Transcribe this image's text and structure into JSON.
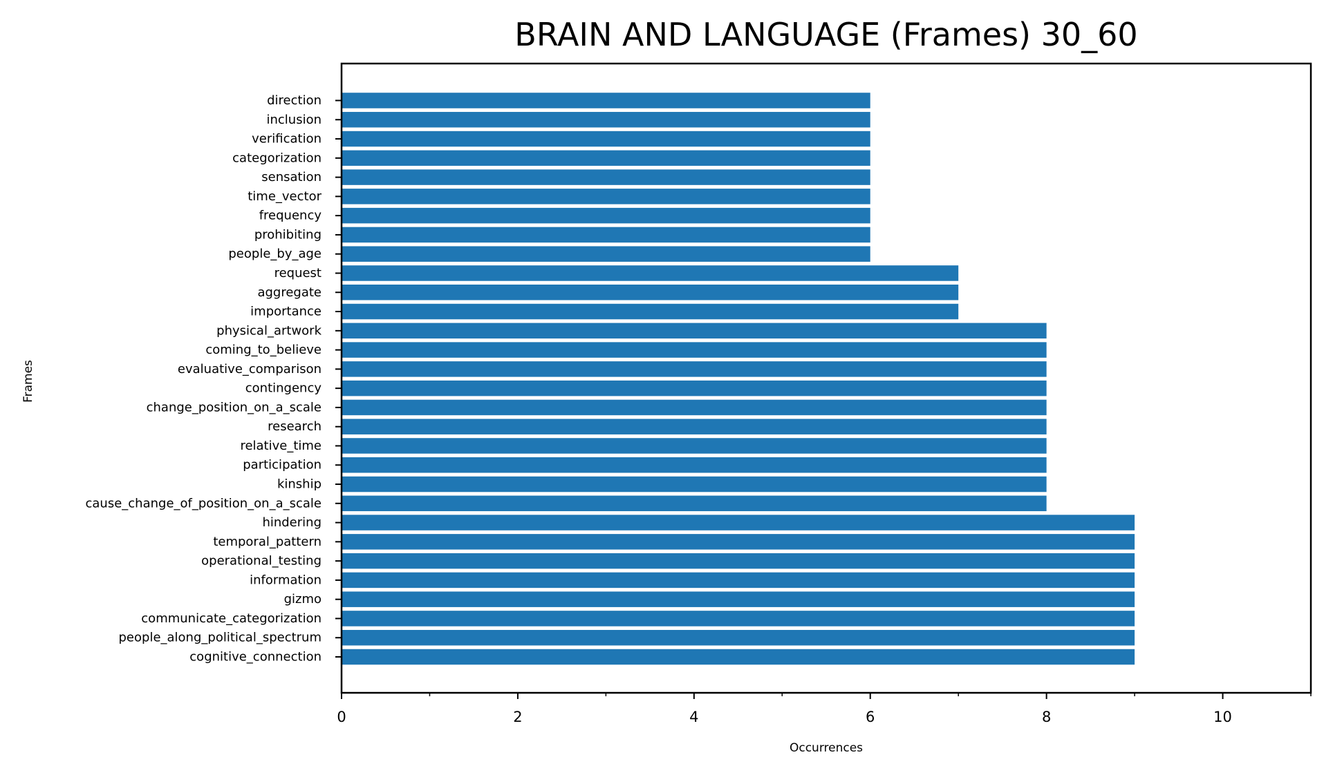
{
  "chart_data": {
    "type": "bar",
    "orientation": "horizontal",
    "title": "BRAIN AND LANGUAGE (Frames) 30_60",
    "xlabel": "Occurrences",
    "ylabel": "Frames",
    "xlim": [
      0,
      11
    ],
    "xticks": [
      0,
      2,
      4,
      6,
      8,
      10
    ],
    "xticks_minor": [
      1,
      3,
      5,
      7,
      9,
      11
    ],
    "grid": false,
    "bar_color": "#1f77b4",
    "categories": [
      "direction",
      "inclusion",
      "verification",
      "categorization",
      "sensation",
      "time_vector",
      "frequency",
      "prohibiting",
      "people_by_age",
      "request",
      "aggregate",
      "importance",
      "physical_artwork",
      "coming_to_believe",
      "evaluative_comparison",
      "contingency",
      "change_position_on_a_scale",
      "research",
      "relative_time",
      "participation",
      "kinship",
      "cause_change_of_position_on_a_scale",
      "hindering",
      "temporal_pattern",
      "operational_testing",
      "information",
      "gizmo",
      "communicate_categorization",
      "people_along_political_spectrum",
      "cognitive_connection"
    ],
    "values": [
      6,
      6,
      6,
      6,
      6,
      6,
      6,
      6,
      6,
      7,
      7,
      7,
      8,
      8,
      8,
      8,
      8,
      8,
      8,
      8,
      8,
      8,
      9,
      9,
      9,
      9,
      9,
      9,
      9,
      9
    ]
  }
}
